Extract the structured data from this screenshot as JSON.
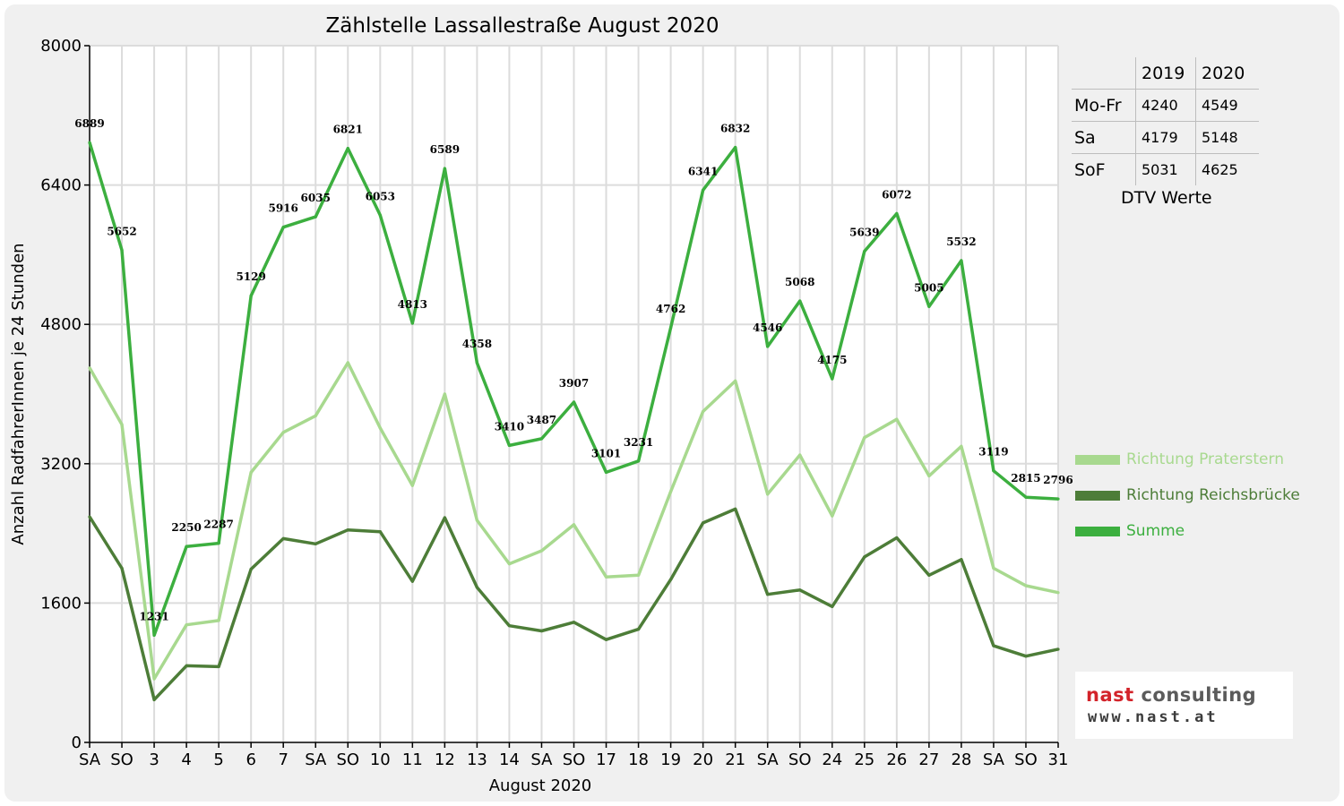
{
  "chart_data": {
    "type": "line",
    "title": "Zählstelle Lassallestraße August 2020",
    "xlabel": "August 2020",
    "ylabel": "Anzahl RadfahrerInnen je 24 Stunden",
    "ylim": [
      0,
      8000
    ],
    "yticks": [
      0,
      1600,
      3200,
      4800,
      6400,
      8000
    ],
    "grid": true,
    "legend_position": "right",
    "categories": [
      "SA",
      "SO",
      "3",
      "4",
      "5",
      "6",
      "7",
      "SA",
      "SO",
      "10",
      "11",
      "12",
      "13",
      "14",
      "SA",
      "SO",
      "17",
      "18",
      "19",
      "20",
      "21",
      "SA",
      "SO",
      "24",
      "25",
      "26",
      "27",
      "28",
      "SA",
      "SO",
      "31"
    ],
    "category_colors": [
      "#000000",
      "#dd0000",
      "#000000",
      "#000000",
      "#000000",
      "#000000",
      "#000000",
      "#000000",
      "#dd0000",
      "#000000",
      "#000000",
      "#000000",
      "#000000",
      "#000000",
      "#000000",
      "#dd0000",
      "#000000",
      "#000000",
      "#000000",
      "#000000",
      "#000000",
      "#000000",
      "#dd0000",
      "#000000",
      "#000000",
      "#000000",
      "#000000",
      "#000000",
      "#000000",
      "#dd0000",
      "#000000"
    ],
    "series": [
      {
        "name": "Richtung Praterstern",
        "color": "#a8d98f",
        "values": [
          4300,
          3650,
          730,
          1350,
          1400,
          3100,
          3560,
          3750,
          4360,
          3610,
          2950,
          4000,
          2550,
          2050,
          2200,
          2500,
          1900,
          1920,
          2880,
          3800,
          4150,
          2850,
          3300,
          2600,
          3500,
          3710,
          3060,
          3400,
          2000,
          1800,
          1720
        ]
      },
      {
        "name": "Richtung Reichsbrücke",
        "color": "#4d7d38",
        "values": [
          2590,
          2000,
          490,
          880,
          870,
          1990,
          2340,
          2280,
          2440,
          2420,
          1850,
          2580,
          1780,
          1340,
          1280,
          1380,
          1180,
          1300,
          1870,
          2520,
          2680,
          1700,
          1750,
          1560,
          2130,
          2350,
          1920,
          2100,
          1110,
          990,
          1070
        ]
      },
      {
        "name": "Summe",
        "color": "#3caf3f",
        "values": [
          6889,
          5652,
          1231,
          2250,
          2287,
          5129,
          5916,
          6035,
          6821,
          6053,
          4813,
          6589,
          4358,
          3410,
          3487,
          3907,
          3101,
          3231,
          4762,
          6341,
          6832,
          4546,
          5068,
          4175,
          5639,
          6072,
          5005,
          5532,
          3119,
          2815,
          2796
        ]
      }
    ],
    "data_labels": [
      "6889",
      "5652",
      "1231",
      "2250",
      "2287",
      "5129",
      "5916",
      "6035",
      "6821",
      "6053",
      "4813",
      "6589",
      "4358",
      "3410",
      "3487",
      "3907",
      "3101",
      "3231",
      "4762",
      "6341",
      "6832",
      "4546",
      "5068",
      "4175",
      "5639",
      "6072",
      "5005",
      "5532",
      "3119",
      "2815",
      "2796"
    ]
  },
  "dtv_table": {
    "caption": "DTV Werte",
    "col_headers": [
      "2019",
      "2020"
    ],
    "rows": [
      {
        "label": "Mo-Fr",
        "v2019": "4240",
        "v2020": "4549"
      },
      {
        "label": "Sa",
        "v2019": "4179",
        "v2020": "5148"
      },
      {
        "label": "SoF",
        "v2019": "5031",
        "v2020": "4625"
      }
    ]
  },
  "logo": {
    "name_part1": "nast",
    "name_part2": "consulting",
    "url": "www.nast.at"
  }
}
